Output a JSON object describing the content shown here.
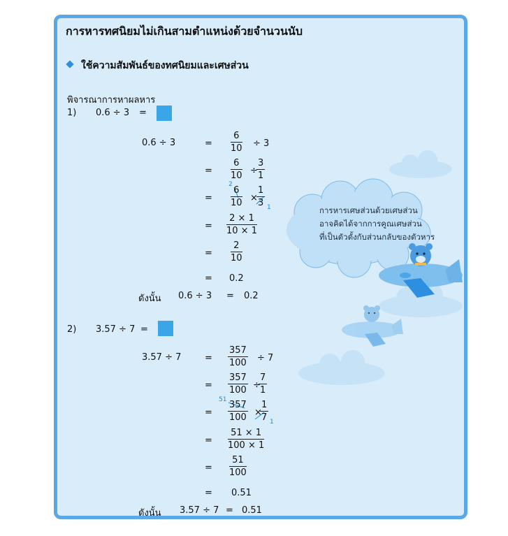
{
  "title": "การหารทศนิยมไม่เกินสามตำแหน่งด้วยจำนวนนับ",
  "subtitle": "ใช้ความสัมพันธ์ของทศนิยมและเศษส่วน",
  "instruction": "พิจารณาการหาผลหาร",
  "eq": "=",
  "times": "×",
  "div_op": "÷",
  "example1": {
    "num": "1)",
    "prompt": "0.6 ÷ 3",
    "lhs": "0.6 ÷ 3",
    "s1": {
      "num": "6",
      "den": "10",
      "rest": "÷ 3"
    },
    "s2": {
      "num": "6",
      "den": "10",
      "op": "÷",
      "num2": "3",
      "den2": "1"
    },
    "s3": {
      "num": "6",
      "den": "10",
      "num2": "1",
      "den2": "3",
      "cancel_top": "2",
      "cancel_bottom": "1"
    },
    "s4": {
      "num": "2 × 1",
      "den": "10 × 1"
    },
    "s5": {
      "num": "2",
      "den": "10"
    },
    "s6": "0.2",
    "therefore": "ดังนั้น",
    "conclusion_expr": "0.6 ÷ 3",
    "conclusion_value": "0.2"
  },
  "example2": {
    "num": "2)",
    "prompt": "3.57 ÷ 7",
    "lhs": "3.57 ÷ 7",
    "s1": {
      "num": "357",
      "den": "100",
      "rest": "÷ 7"
    },
    "s2": {
      "num": "357",
      "den": "100",
      "op": "÷",
      "num2": "7",
      "den2": "1"
    },
    "s3": {
      "num": "357",
      "den": "100",
      "num2": "1",
      "den2": "7",
      "cancel_top": "51",
      "cancel_bottom": "1"
    },
    "s4": {
      "num": "51 × 1",
      "den": "100 × 1"
    },
    "s5": {
      "num": "51",
      "den": "100"
    },
    "s6": "0.51",
    "therefore": "ดังนั้น",
    "conclusion_expr": "3.57 ÷ 7",
    "conclusion_value": "0.51"
  },
  "bubble": {
    "line1": "การหารเศษส่วนด้วยเศษส่วน",
    "line2": "อาจคิดได้จากการคูณเศษส่วน",
    "line3": "ที่เป็นตัวตั้งกับส่วนกลับของตัวหาร"
  },
  "colors": {
    "border": "#5aa9e6",
    "panel": "#d9ecfa",
    "accent": "#3aa6e8",
    "cloud": "#bfe0f7"
  }
}
